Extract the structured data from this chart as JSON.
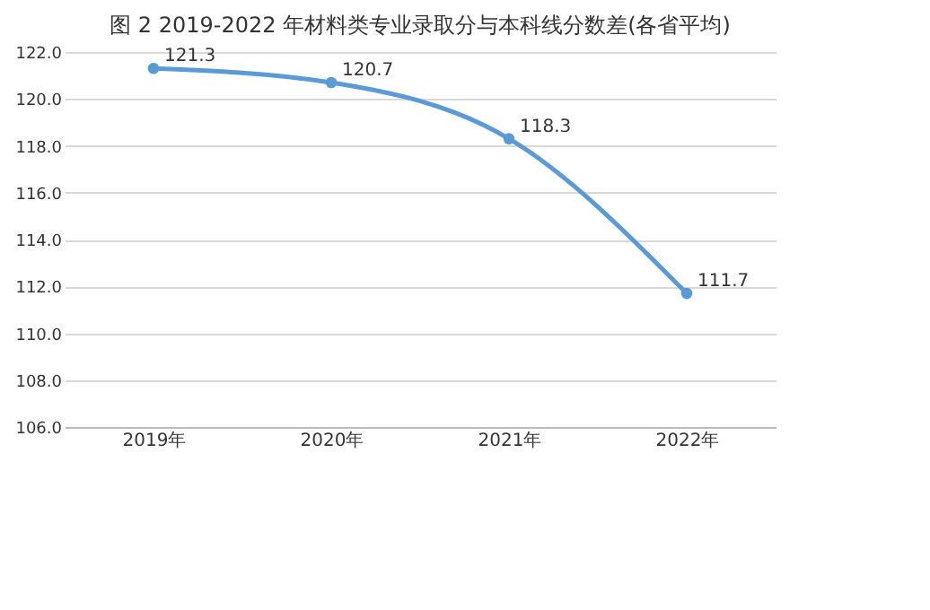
{
  "chart_data": {
    "type": "line",
    "title": "图 2 2019-2022 年材料类专业录取分与本科线分数差(各省平均)",
    "categories": [
      "2019年",
      "2020年",
      "2021年",
      "2022年"
    ],
    "series": [
      {
        "color": "#5b9bd5",
        "values": [
          121.3,
          120.7,
          118.3,
          111.7
        ]
      }
    ],
    "ylim": [
      106,
      122
    ],
    "yticks": [
      {
        "value": 106,
        "label": "106.0"
      },
      {
        "value": 108,
        "label": "108.0"
      },
      {
        "value": 110,
        "label": "110.0"
      },
      {
        "value": 112,
        "label": "112.0"
      },
      {
        "value": 114,
        "label": "114.0"
      },
      {
        "value": 116,
        "label": "116.0"
      },
      {
        "value": 118,
        "label": "118.0"
      },
      {
        "value": 120,
        "label": "120.0"
      },
      {
        "value": 122,
        "label": "122.0"
      }
    ],
    "grid": "y",
    "marker": "circle",
    "data_labels": true
  }
}
